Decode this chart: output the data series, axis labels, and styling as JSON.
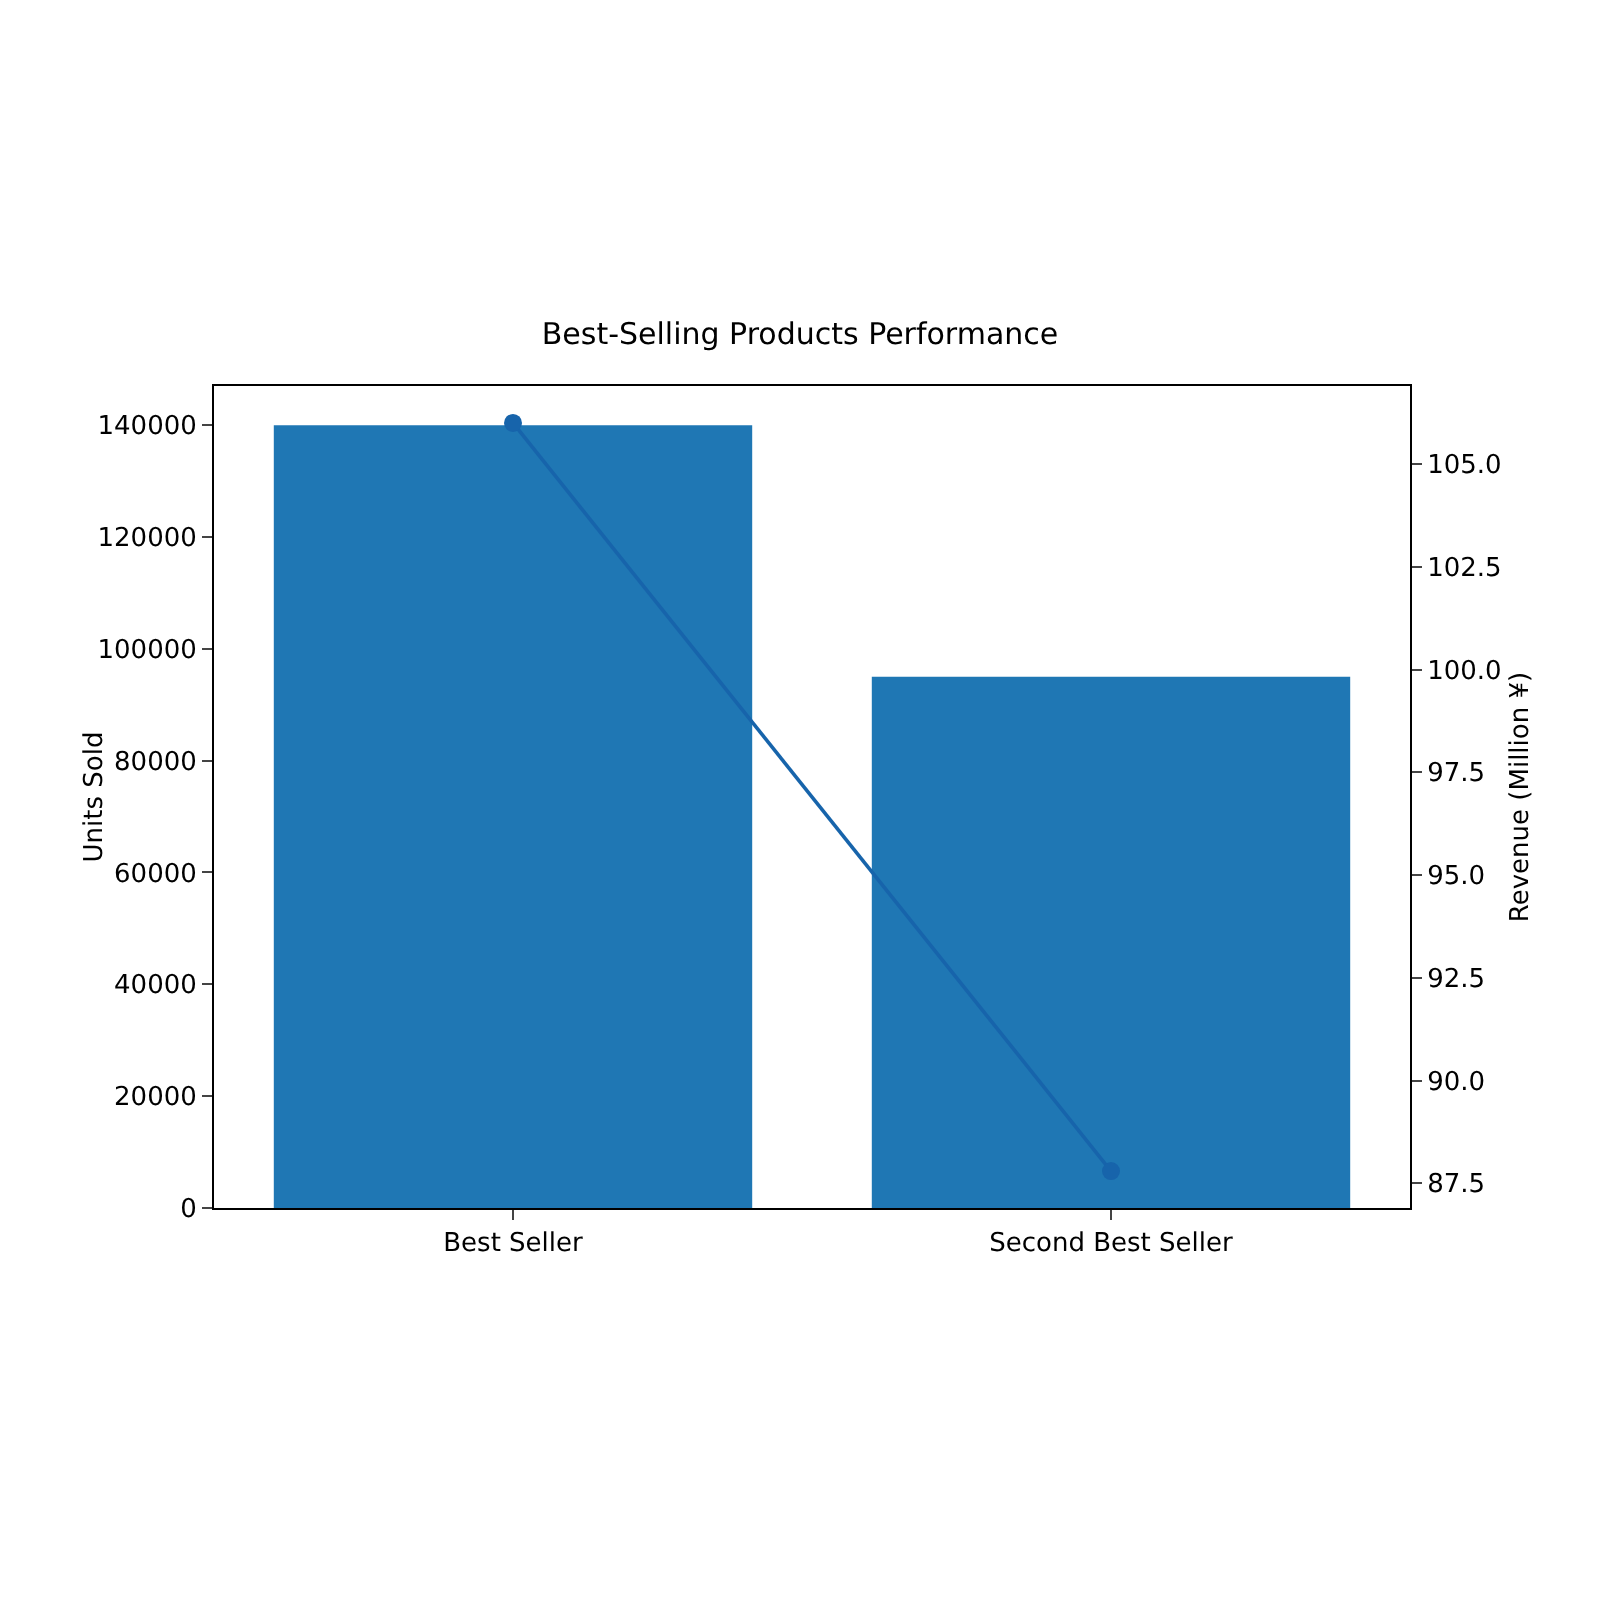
{
  "chart_data": {
    "type": "bar",
    "title": "Best-Selling Products Performance",
    "ylabel": "Units Sold",
    "y2label": "Revenue (Million ¥)",
    "categories": [
      "Best Seller",
      "Second Best Seller"
    ],
    "series": [
      {
        "color": "#1f77b4",
        "values": [
          140000,
          95000
        ]
      },
      {
        "type": "line",
        "axis": "y2",
        "color": "#1764ab",
        "values": [
          106.0,
          87.8
        ],
        "marker": "circle"
      }
    ],
    "ylim": [
      0,
      147000
    ],
    "yticks": [
      0,
      20000,
      40000,
      60000,
      80000,
      100000,
      120000,
      140000
    ],
    "y2lim": [
      86.9,
      106.9
    ],
    "y2ticks": [
      {
        "value": 87.5,
        "label": "87.5"
      },
      {
        "value": 90,
        "label": "90.0"
      },
      {
        "value": 92.5,
        "label": "92.5"
      },
      {
        "value": 95,
        "label": "95.0"
      },
      {
        "value": 97.5,
        "label": "97.5"
      },
      {
        "value": 100,
        "label": "100.0"
      },
      {
        "value": 102.5,
        "label": "102.5"
      },
      {
        "value": 105,
        "label": "105.0"
      }
    ],
    "grid": false
  }
}
